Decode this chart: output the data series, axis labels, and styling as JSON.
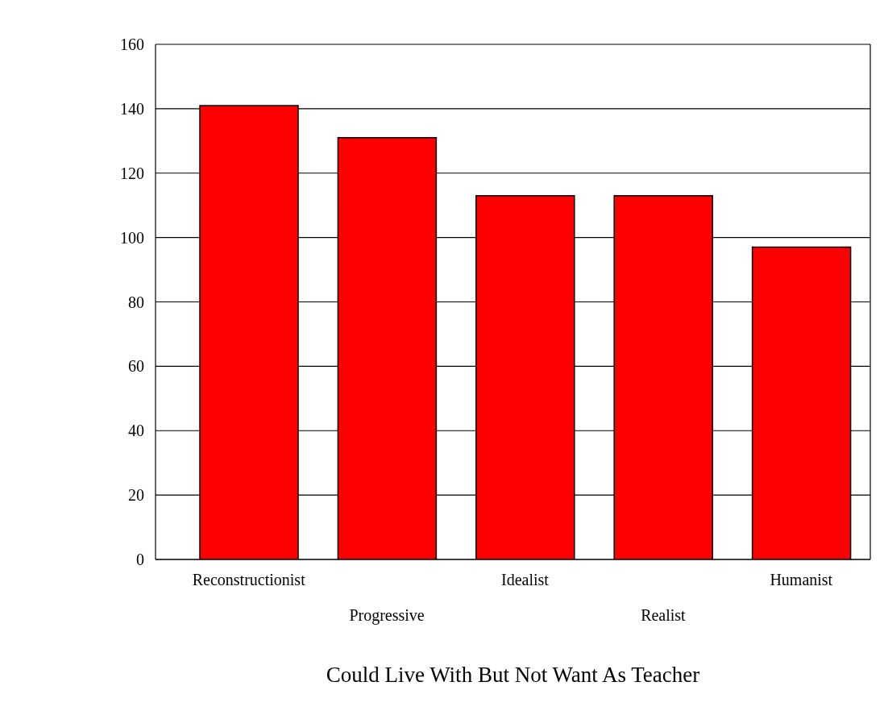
{
  "chart_data": {
    "type": "bar",
    "xlabel": "Could Live With But Not Want As Teacher",
    "categories": [
      "Reconstructionist",
      "Progressive",
      "Idealist",
      "Realist",
      "Humanist"
    ],
    "values": [
      141,
      131,
      113,
      113,
      97
    ],
    "color": "#ff0000",
    "ylim": [
      0,
      160
    ],
    "yticks": [
      0,
      20,
      40,
      60,
      80,
      100,
      120,
      140,
      160
    ],
    "grid": "y"
  }
}
